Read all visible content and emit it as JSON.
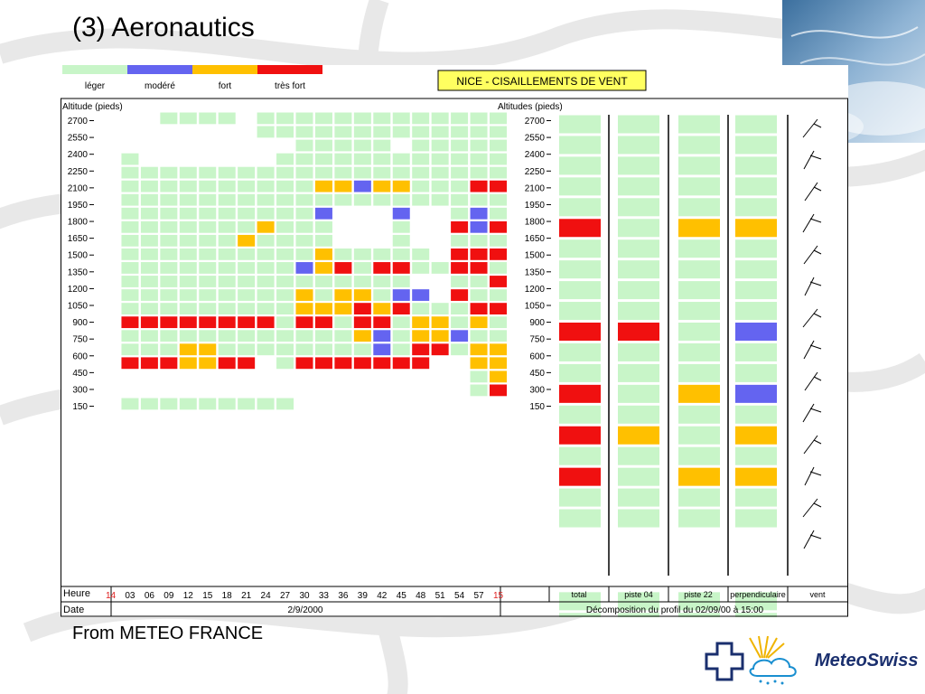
{
  "slide": {
    "title": "(3) Aeronautics",
    "caption": "From METEO FRANCE",
    "logo_text": "MeteoSwiss"
  },
  "chart_data": {
    "type": "heatmap",
    "title": "NICE - CISAILLEMENTS DE VENT",
    "legend": [
      {
        "label": "léger",
        "color": "#c8f5c8"
      },
      {
        "label": "modéré",
        "color": "#6464f0"
      },
      {
        "label": "fort",
        "color": "#ffc000"
      },
      {
        "label": "très fort",
        "color": "#f01010"
      }
    ],
    "left_axis_label": "Altitude (pieds)",
    "right_axis_label": "Altitudes (pieds)",
    "altitude_ticks": [
      "2700",
      "2550",
      "2400",
      "2250",
      "2100",
      "1950",
      "1800",
      "1650",
      "1500",
      "1350",
      "1200",
      "1050",
      "900",
      "750",
      "600",
      "450",
      "300",
      "150"
    ],
    "row_label": "Heure",
    "date_label": "Date",
    "hours": [
      "14",
      "03",
      "06",
      "09",
      "12",
      "15",
      "18",
      "21",
      "24",
      "27",
      "30",
      "33",
      "36",
      "39",
      "42",
      "45",
      "48",
      "51",
      "54",
      "57",
      "15"
    ],
    "hour_highlight_color": "#e02020",
    "date_value": "2/9/2000",
    "decomposition_label": "Décomposition du profil du 02/09/00 à 15:00",
    "cell_legend": {
      "0": "empty",
      "1": "léger",
      "2": "modéré",
      "3": "fort",
      "4": "très fort"
    },
    "time_grid": [
      [
        0,
        0,
        0,
        1,
        1,
        1,
        1,
        0,
        1,
        1,
        1,
        1,
        1,
        1,
        1,
        1,
        1,
        1,
        1,
        1,
        1
      ],
      [
        0,
        0,
        0,
        0,
        0,
        0,
        0,
        0,
        1,
        1,
        1,
        1,
        1,
        1,
        1,
        1,
        1,
        1,
        1,
        1,
        1
      ],
      [
        0,
        0,
        0,
        0,
        0,
        0,
        0,
        0,
        0,
        0,
        1,
        1,
        1,
        1,
        1,
        0,
        1,
        1,
        1,
        1,
        1
      ],
      [
        0,
        1,
        0,
        0,
        0,
        0,
        0,
        0,
        0,
        1,
        1,
        1,
        1,
        1,
        1,
        1,
        1,
        1,
        1,
        1,
        1
      ],
      [
        0,
        1,
        1,
        1,
        1,
        1,
        1,
        1,
        1,
        1,
        1,
        1,
        1,
        1,
        1,
        1,
        1,
        1,
        1,
        1,
        1
      ],
      [
        0,
        1,
        1,
        1,
        1,
        1,
        1,
        1,
        1,
        1,
        1,
        3,
        3,
        2,
        3,
        3,
        1,
        1,
        1,
        4,
        4
      ],
      [
        0,
        1,
        1,
        1,
        1,
        1,
        1,
        1,
        1,
        1,
        1,
        1,
        1,
        1,
        1,
        1,
        1,
        1,
        1,
        1,
        1
      ],
      [
        0,
        1,
        1,
        1,
        1,
        1,
        1,
        1,
        1,
        1,
        1,
        2,
        0,
        0,
        0,
        2,
        0,
        0,
        1,
        2,
        1
      ],
      [
        0,
        1,
        1,
        1,
        1,
        1,
        1,
        1,
        3,
        1,
        1,
        1,
        0,
        0,
        0,
        1,
        0,
        0,
        4,
        2,
        4
      ],
      [
        0,
        1,
        1,
        1,
        1,
        1,
        1,
        3,
        1,
        1,
        1,
        1,
        0,
        0,
        0,
        1,
        0,
        0,
        1,
        1,
        1
      ],
      [
        0,
        1,
        1,
        1,
        1,
        1,
        1,
        1,
        1,
        1,
        1,
        3,
        1,
        1,
        1,
        1,
        1,
        0,
        4,
        4,
        4
      ],
      [
        0,
        1,
        1,
        1,
        1,
        1,
        1,
        1,
        1,
        1,
        2,
        3,
        4,
        1,
        4,
        4,
        1,
        1,
        4,
        4,
        1
      ],
      [
        0,
        1,
        1,
        1,
        1,
        1,
        1,
        1,
        1,
        1,
        1,
        1,
        1,
        1,
        1,
        1,
        0,
        0,
        1,
        1,
        4
      ],
      [
        0,
        1,
        1,
        1,
        1,
        1,
        1,
        1,
        1,
        1,
        3,
        1,
        3,
        3,
        1,
        2,
        2,
        0,
        4,
        1,
        1
      ],
      [
        0,
        1,
        1,
        1,
        1,
        1,
        1,
        1,
        1,
        1,
        3,
        3,
        3,
        4,
        3,
        4,
        1,
        1,
        1,
        4,
        4
      ],
      [
        0,
        4,
        4,
        4,
        4,
        4,
        4,
        4,
        4,
        1,
        4,
        4,
        1,
        4,
        4,
        1,
        3,
        3,
        1,
        3,
        1
      ],
      [
        0,
        1,
        1,
        1,
        1,
        1,
        1,
        1,
        1,
        1,
        1,
        1,
        1,
        3,
        2,
        1,
        3,
        3,
        2,
        1,
        1
      ],
      [
        0,
        1,
        1,
        1,
        3,
        3,
        1,
        1,
        1,
        1,
        1,
        1,
        1,
        1,
        2,
        1,
        4,
        4,
        1,
        3,
        3
      ],
      [
        0,
        4,
        4,
        4,
        3,
        3,
        4,
        4,
        0,
        1,
        4,
        4,
        4,
        4,
        4,
        4,
        4,
        0,
        0,
        3,
        3
      ],
      [
        0,
        0,
        0,
        0,
        0,
        0,
        0,
        0,
        0,
        0,
        0,
        0,
        0,
        0,
        0,
        0,
        0,
        0,
        0,
        1,
        3
      ],
      [
        0,
        0,
        0,
        0,
        0,
        0,
        0,
        0,
        0,
        0,
        0,
        0,
        0,
        0,
        0,
        0,
        0,
        0,
        0,
        1,
        4
      ],
      [
        0,
        1,
        1,
        1,
        1,
        1,
        1,
        1,
        1,
        1,
        0,
        0,
        0,
        0,
        0,
        0,
        0,
        0,
        0,
        0,
        0
      ]
    ],
    "decomposition_columns": [
      "total",
      "piste 04",
      "piste 22",
      "perpendiculaire",
      "vent"
    ],
    "decomposition_grid": [
      [
        1,
        1,
        1,
        1
      ],
      [
        1,
        1,
        1,
        1
      ],
      [
        1,
        1,
        1,
        1
      ],
      [
        1,
        1,
        1,
        1
      ],
      [
        1,
        1,
        1,
        1
      ],
      [
        4,
        1,
        3,
        3
      ],
      [
        1,
        1,
        1,
        1
      ],
      [
        1,
        1,
        1,
        1
      ],
      [
        1,
        1,
        1,
        1
      ],
      [
        1,
        1,
        1,
        1
      ],
      [
        4,
        4,
        1,
        2
      ],
      [
        1,
        1,
        1,
        1
      ],
      [
        1,
        1,
        1,
        1
      ],
      [
        4,
        1,
        3,
        2
      ],
      [
        1,
        1,
        1,
        1
      ],
      [
        4,
        3,
        1,
        3
      ],
      [
        1,
        1,
        1,
        1
      ],
      [
        4,
        1,
        3,
        3
      ],
      [
        1,
        1,
        1,
        1
      ],
      [
        1,
        1,
        1,
        1
      ],
      [
        0,
        0,
        0,
        0
      ],
      [
        0,
        0,
        0,
        0
      ],
      [
        0,
        0,
        0,
        0
      ],
      [
        1,
        1,
        1,
        1
      ],
      [
        1,
        1,
        1,
        1
      ],
      [
        4,
        1,
        2,
        3
      ],
      [
        4,
        3,
        1,
        4
      ],
      [
        1,
        1,
        1,
        1
      ],
      [
        1,
        1,
        1,
        1
      ]
    ],
    "grid": true
  }
}
